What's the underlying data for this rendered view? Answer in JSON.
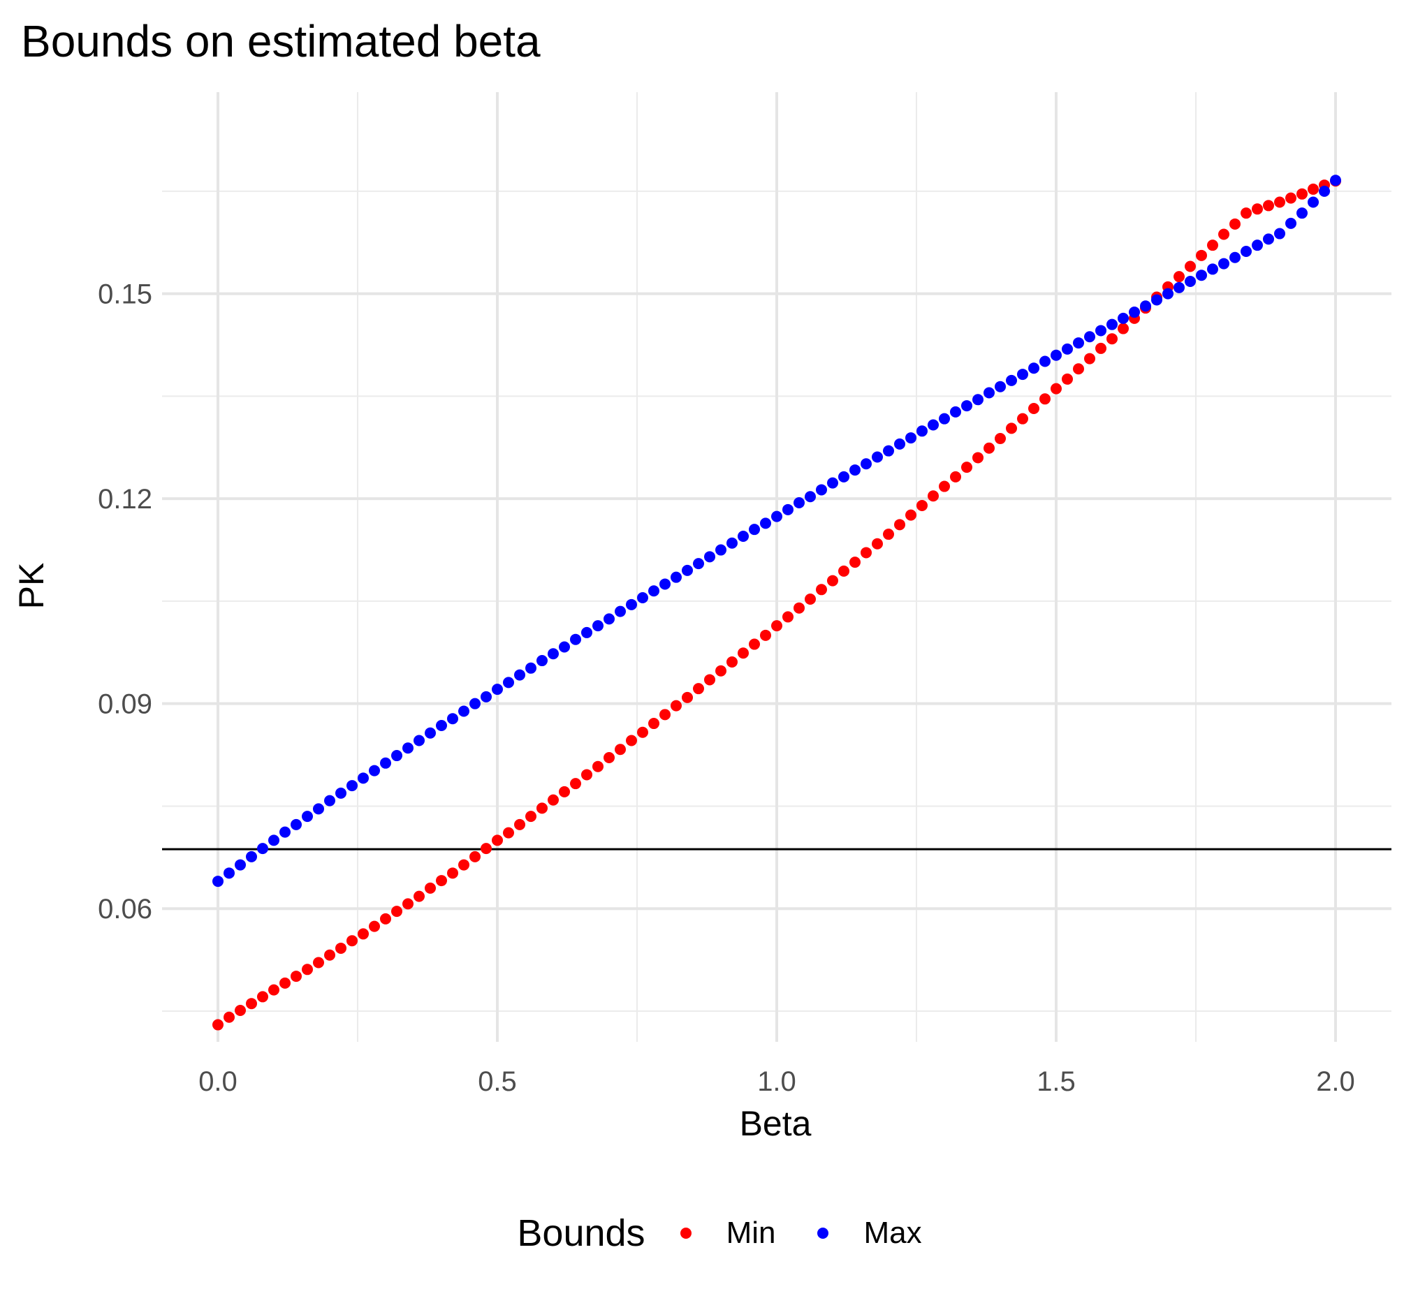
{
  "chart_data": {
    "type": "scatter",
    "title": "Bounds on estimated beta",
    "xlabel": "Beta",
    "ylabel": "PK",
    "xlim": [
      -0.1,
      2.1
    ],
    "ylim": [
      0.0405,
      0.1795
    ],
    "x_ticks": [
      0.0,
      0.5,
      1.0,
      1.5,
      2.0
    ],
    "x_tick_labels": [
      "0.0",
      "0.5",
      "1.0",
      "1.5",
      "2.0"
    ],
    "y_ticks": [
      0.06,
      0.09,
      0.12,
      0.15
    ],
    "y_tick_labels": [
      "0.06",
      "0.09",
      "0.12",
      "0.15"
    ],
    "hline": 0.0687,
    "grid": true,
    "legend_position": "bottom",
    "legend_title": "Bounds",
    "series": [
      {
        "name": "Min",
        "color": "#ff0000",
        "x": [
          0.0,
          0.02,
          0.04,
          0.06,
          0.08,
          0.1,
          0.12,
          0.14,
          0.16,
          0.18,
          0.2,
          0.22,
          0.24,
          0.26,
          0.28,
          0.3,
          0.32,
          0.34,
          0.36,
          0.38,
          0.4,
          0.42,
          0.44,
          0.46,
          0.48,
          0.5,
          0.52,
          0.54,
          0.56,
          0.58,
          0.6,
          0.62,
          0.64,
          0.66,
          0.68,
          0.7,
          0.72,
          0.74,
          0.76,
          0.78,
          0.8,
          0.82,
          0.84,
          0.86,
          0.88,
          0.9,
          0.92,
          0.94,
          0.96,
          0.98,
          1.0,
          1.02,
          1.04,
          1.06,
          1.08,
          1.1,
          1.12,
          1.14,
          1.16,
          1.18,
          1.2,
          1.22,
          1.24,
          1.26,
          1.28,
          1.3,
          1.32,
          1.34,
          1.36,
          1.38,
          1.4,
          1.42,
          1.44,
          1.46,
          1.48,
          1.5,
          1.52,
          1.54,
          1.56,
          1.58,
          1.6,
          1.62,
          1.64,
          1.66,
          1.68,
          1.7,
          1.72,
          1.74,
          1.76,
          1.78,
          1.8,
          1.82,
          1.84,
          1.86,
          1.88,
          1.9,
          1.92,
          1.94,
          1.96,
          1.98,
          2.0
        ],
        "y": [
          0.043,
          0.0441,
          0.0451,
          0.0461,
          0.0471,
          0.0481,
          0.0491,
          0.0501,
          0.0511,
          0.0521,
          0.0532,
          0.0542,
          0.0553,
          0.0563,
          0.0574,
          0.0585,
          0.0596,
          0.0607,
          0.0618,
          0.063,
          0.0641,
          0.0652,
          0.0664,
          0.0676,
          0.0688,
          0.07,
          0.0711,
          0.0723,
          0.0735,
          0.0747,
          0.0759,
          0.0771,
          0.0783,
          0.0796,
          0.0808,
          0.0821,
          0.0833,
          0.0846,
          0.0858,
          0.0871,
          0.0884,
          0.0897,
          0.0909,
          0.0922,
          0.0935,
          0.0948,
          0.0961,
          0.0974,
          0.0987,
          0.1,
          0.1014,
          0.1027,
          0.104,
          0.1053,
          0.1067,
          0.108,
          0.1094,
          0.1107,
          0.1121,
          0.1134,
          0.1148,
          0.1162,
          0.1176,
          0.119,
          0.1204,
          0.1218,
          0.1232,
          0.1246,
          0.126,
          0.1274,
          0.1288,
          0.1303,
          0.1317,
          0.1332,
          0.1346,
          0.1361,
          0.1375,
          0.139,
          0.1405,
          0.142,
          0.1434,
          0.1449,
          0.1464,
          0.1479,
          0.1495,
          0.151,
          0.1525,
          0.154,
          0.1556,
          0.1571,
          0.1587,
          0.1602,
          0.1618,
          0.1624,
          0.1629,
          0.1634,
          0.164,
          0.1646,
          0.1653,
          0.1659,
          0.1665
        ]
      },
      {
        "name": "Max",
        "color": "#0000ff",
        "x": [
          0.0,
          0.02,
          0.04,
          0.06,
          0.08,
          0.1,
          0.12,
          0.14,
          0.16,
          0.18,
          0.2,
          0.22,
          0.24,
          0.26,
          0.28,
          0.3,
          0.32,
          0.34,
          0.36,
          0.38,
          0.4,
          0.42,
          0.44,
          0.46,
          0.48,
          0.5,
          0.52,
          0.54,
          0.56,
          0.58,
          0.6,
          0.62,
          0.64,
          0.66,
          0.68,
          0.7,
          0.72,
          0.74,
          0.76,
          0.78,
          0.8,
          0.82,
          0.84,
          0.86,
          0.88,
          0.9,
          0.92,
          0.94,
          0.96,
          0.98,
          1.0,
          1.02,
          1.04,
          1.06,
          1.08,
          1.1,
          1.12,
          1.14,
          1.16,
          1.18,
          1.2,
          1.22,
          1.24,
          1.26,
          1.28,
          1.3,
          1.32,
          1.34,
          1.36,
          1.38,
          1.4,
          1.42,
          1.44,
          1.46,
          1.48,
          1.5,
          1.52,
          1.54,
          1.56,
          1.58,
          1.6,
          1.62,
          1.64,
          1.66,
          1.68,
          1.7,
          1.72,
          1.74,
          1.76,
          1.78,
          1.8,
          1.82,
          1.84,
          1.86,
          1.88,
          1.9,
          1.92,
          1.94,
          1.96,
          1.98,
          2.0
        ],
        "y": [
          0.064,
          0.0652,
          0.0664,
          0.0676,
          0.0688,
          0.07,
          0.0712,
          0.0723,
          0.0735,
          0.0746,
          0.0758,
          0.0769,
          0.078,
          0.0791,
          0.0802,
          0.0813,
          0.0824,
          0.0835,
          0.0846,
          0.0857,
          0.0868,
          0.0878,
          0.0889,
          0.09,
          0.091,
          0.0921,
          0.0931,
          0.0942,
          0.0952,
          0.0963,
          0.0973,
          0.0983,
          0.0994,
          0.1004,
          0.1014,
          0.1024,
          0.1035,
          0.1045,
          0.1055,
          0.1065,
          0.1075,
          0.1085,
          0.1095,
          0.1105,
          0.1115,
          0.1125,
          0.1135,
          0.1145,
          0.1155,
          0.1164,
          0.1174,
          0.1184,
          0.1194,
          0.1203,
          0.1213,
          0.1223,
          0.1232,
          0.1242,
          0.1251,
          0.1261,
          0.127,
          0.128,
          0.1289,
          0.1299,
          0.1308,
          0.1317,
          0.1327,
          0.1336,
          0.1345,
          0.1355,
          0.1364,
          0.1373,
          0.1382,
          0.1391,
          0.1401,
          0.141,
          0.1419,
          0.1428,
          0.1437,
          0.1446,
          0.1455,
          0.1464,
          0.1473,
          0.1482,
          0.1491,
          0.15,
          0.1509,
          0.1518,
          0.1527,
          0.1536,
          0.1544,
          0.1553,
          0.1562,
          0.1571,
          0.158,
          0.1588,
          0.1603,
          0.1618,
          0.1634,
          0.165,
          0.1666
        ]
      }
    ]
  }
}
